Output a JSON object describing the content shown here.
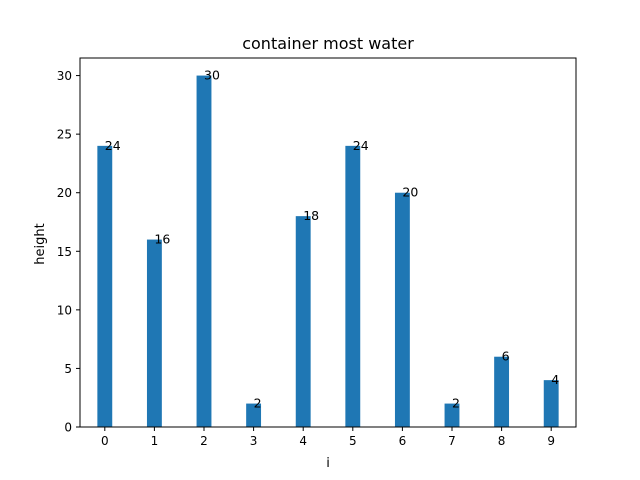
{
  "chart_data": {
    "type": "bar",
    "title": "container most water",
    "xlabel": "i",
    "ylabel": "height",
    "categories": [
      "0",
      "1",
      "2",
      "3",
      "4",
      "5",
      "6",
      "7",
      "8",
      "9"
    ],
    "values": [
      24,
      16,
      30,
      2,
      18,
      24,
      20,
      2,
      6,
      4
    ],
    "ylim": [
      0,
      31.5
    ],
    "yticks": [
      0,
      5,
      10,
      15,
      20,
      25,
      30
    ],
    "grid": false,
    "bar_color": "#1f77b4"
  }
}
